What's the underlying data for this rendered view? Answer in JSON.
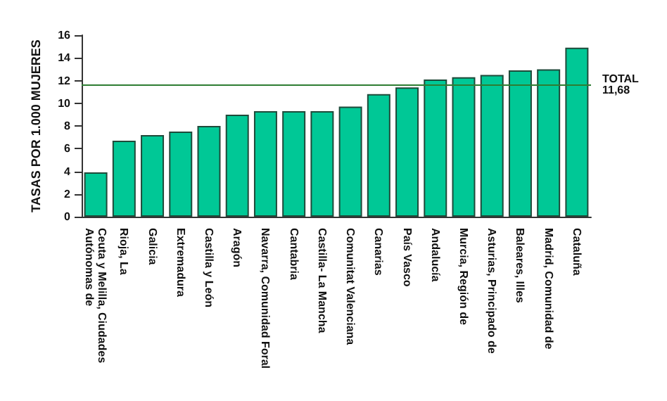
{
  "chart_data": {
    "type": "bar",
    "ylabel": "TASAS POR 1.000 MUJERES",
    "categories": [
      "Ceuta y Melilla, Ciudades Autónomas de",
      "Rioja, La",
      "Galicia",
      "Extremadura",
      "Castilla y León",
      "Aragón",
      "Navarra, Comunidad Foral",
      "Cantabria",
      "Castilla- La Mancha",
      "Comunitat Valenciana",
      "Canarias",
      "País Vasco",
      "Andalucía",
      "Murcia, Región de",
      "Asturias, Principado de",
      "Baleares, Illes",
      "Madrid, Comunidad de",
      "Cataluña"
    ],
    "values": [
      3.9,
      6.7,
      7.2,
      7.5,
      8.0,
      9.0,
      9.3,
      9.3,
      9.3,
      9.7,
      10.8,
      11.4,
      12.1,
      12.3,
      12.5,
      12.9,
      13.0,
      14.9
    ],
    "color": "#00c896",
    "ylim": [
      0,
      16
    ],
    "yticks": [
      0,
      2,
      4,
      6,
      8,
      10,
      12,
      14,
      16
    ],
    "ref_lines": [
      {
        "axis": "y",
        "value": 11.68,
        "label": "TOTAL\n11,68",
        "color": "#2e7d32"
      }
    ]
  }
}
